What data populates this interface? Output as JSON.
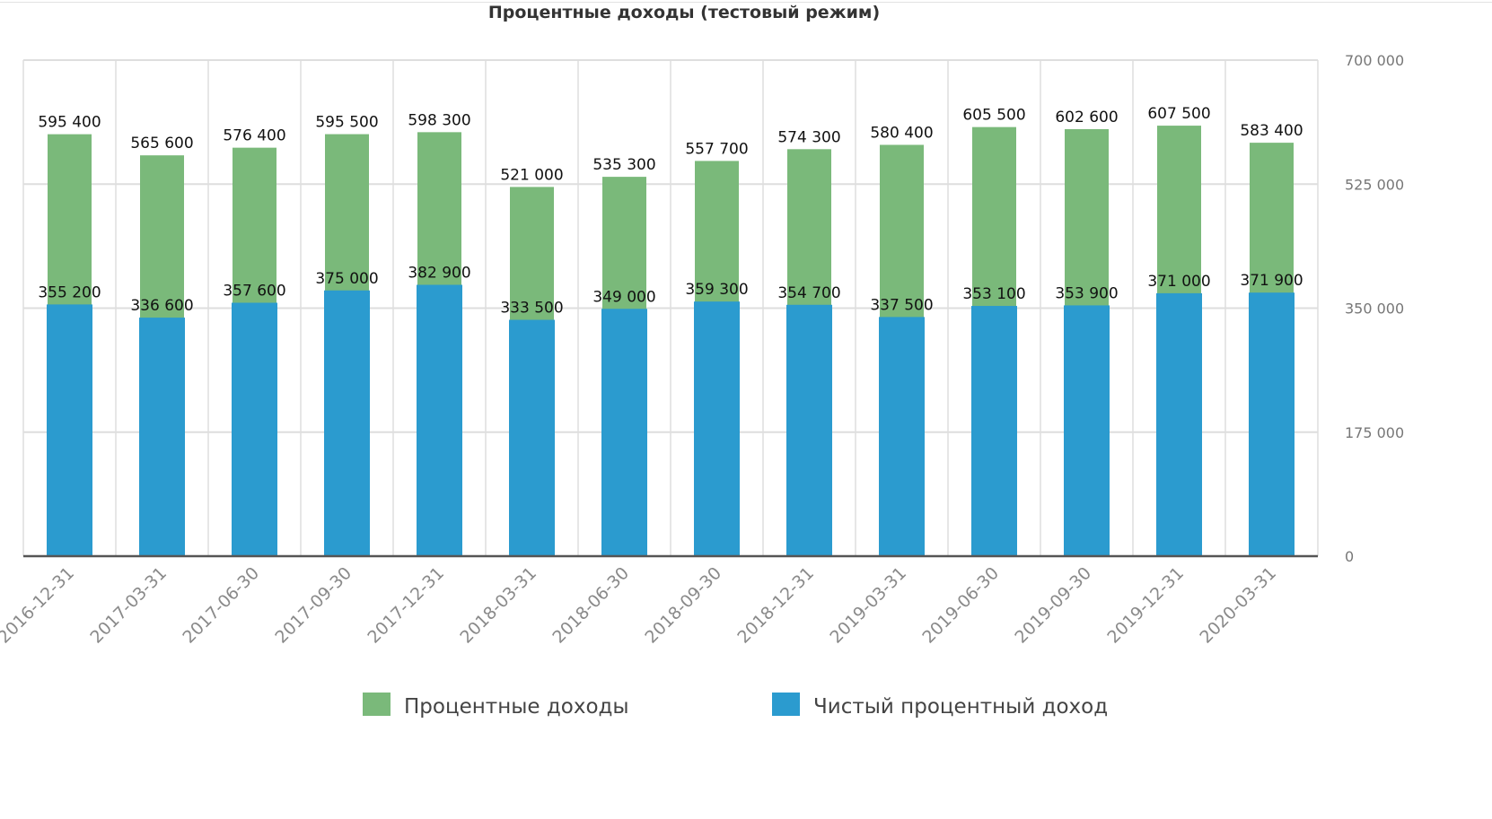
{
  "chart_data": {
    "type": "bar",
    "title": "Процентные доходы (тестовый режим)",
    "xlabel": "",
    "ylabel": "",
    "categories": [
      "2016-12-31",
      "2017-03-31",
      "2017-06-30",
      "2017-09-30",
      "2017-12-31",
      "2018-03-31",
      "2018-06-30",
      "2018-09-30",
      "2018-12-31",
      "2019-03-31",
      "2019-06-30",
      "2019-09-30",
      "2019-12-31",
      "2020-03-31"
    ],
    "series": [
      {
        "name": "Процентные доходы",
        "color": "#7ab97a",
        "values": [
          595400,
          565600,
          576400,
          595500,
          598300,
          521000,
          535300,
          557700,
          574300,
          580400,
          605500,
          602600,
          607500,
          583400
        ],
        "labels": [
          "595 400",
          "565 600",
          "576 400",
          "595 500",
          "598 300",
          "521 000",
          "535 300",
          "557 700",
          "574 300",
          "580 400",
          "605 500",
          "602 600",
          "607 500",
          "583 400"
        ]
      },
      {
        "name": "Чистый процентный доход",
        "color": "#2b9bcf",
        "values": [
          355200,
          336600,
          357600,
          375000,
          382900,
          333500,
          349000,
          359300,
          354700,
          337500,
          353100,
          353900,
          371000,
          371900
        ],
        "labels": [
          "355 200",
          "336 600",
          "357 600",
          "375 000",
          "382 900",
          "333 500",
          "349 000",
          "359 300",
          "354 700",
          "337 500",
          "353 100",
          "353 900",
          "371 000",
          "371 900"
        ]
      }
    ],
    "ylim": [
      0,
      700000
    ],
    "y_ticks": [
      0,
      175000,
      350000,
      525000,
      700000
    ],
    "y_tick_labels": [
      "0",
      "175 000",
      "350 000",
      "525 000",
      "700 000"
    ],
    "y_axis_side": "right",
    "grid": true,
    "legend_position": "bottom-center",
    "bar_mode": "overlapping"
  }
}
